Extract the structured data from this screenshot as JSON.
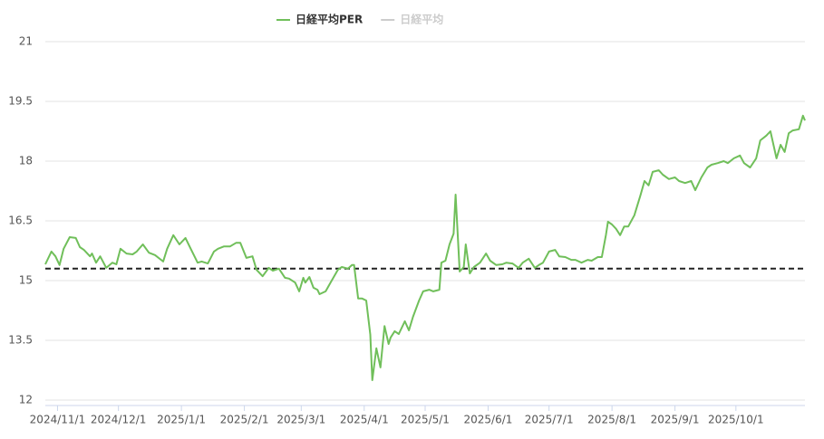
{
  "chart_data": {
    "type": "line",
    "x": [
      "2024-10-26",
      "2024-10-29",
      "2024-10-31",
      "2024-11-02",
      "2024-11-04",
      "2024-11-07",
      "2024-11-10",
      "2024-11-12",
      "2024-11-14",
      "2024-11-17",
      "2024-11-18",
      "2024-11-20",
      "2024-11-22",
      "2024-11-25",
      "2024-11-28",
      "2024-11-30",
      "2024-12-02",
      "2024-12-05",
      "2024-12-08",
      "2024-12-10",
      "2024-12-13",
      "2024-12-16",
      "2024-12-19",
      "2024-12-23",
      "2024-12-25",
      "2024-12-28",
      "2024-12-31",
      "2025-01-03",
      "2025-01-05",
      "2025-01-09",
      "2025-01-11",
      "2025-01-14",
      "2025-01-17",
      "2025-01-19",
      "2025-01-22",
      "2025-01-25",
      "2025-01-28",
      "2025-01-30",
      "2025-02-02",
      "2025-02-05",
      "2025-02-07",
      "2025-02-10",
      "2025-02-13",
      "2025-02-15",
      "2025-02-18",
      "2025-02-21",
      "2025-02-23",
      "2025-02-26",
      "2025-02-28",
      "2025-03-02",
      "2025-03-03",
      "2025-03-05",
      "2025-03-07",
      "2025-03-09",
      "2025-03-10",
      "2025-03-13",
      "2025-03-16",
      "2025-03-19",
      "2025-03-21",
      "2025-03-24",
      "2025-03-26",
      "2025-03-27",
      "2025-03-29",
      "2025-03-31",
      "2025-04-02",
      "2025-04-04",
      "2025-04-05",
      "2025-04-07",
      "2025-04-09",
      "2025-04-11",
      "2025-04-13",
      "2025-04-14",
      "2025-04-16",
      "2025-04-18",
      "2025-04-21",
      "2025-04-23",
      "2025-04-25",
      "2025-04-28",
      "2025-04-30",
      "2025-05-03",
      "2025-05-05",
      "2025-05-08",
      "2025-05-09",
      "2025-05-11",
      "2025-05-13",
      "2025-05-15",
      "2025-05-16",
      "2025-05-18",
      "2025-05-20",
      "2025-05-21",
      "2025-05-23",
      "2025-05-25",
      "2025-05-28",
      "2025-05-31",
      "2025-06-02",
      "2025-06-05",
      "2025-06-08",
      "2025-06-10",
      "2025-06-13",
      "2025-06-16",
      "2025-06-18",
      "2025-06-21",
      "2025-06-24",
      "2025-06-26",
      "2025-06-28",
      "2025-07-01",
      "2025-07-04",
      "2025-07-06",
      "2025-07-09",
      "2025-07-12",
      "2025-07-14",
      "2025-07-17",
      "2025-07-20",
      "2025-07-22",
      "2025-07-25",
      "2025-07-27",
      "2025-07-29",
      "2025-07-30",
      "2025-08-01",
      "2025-08-03",
      "2025-08-05",
      "2025-08-07",
      "2025-08-09",
      "2025-08-12",
      "2025-08-15",
      "2025-08-17",
      "2025-08-19",
      "2025-08-21",
      "2025-08-24",
      "2025-08-26",
      "2025-08-29",
      "2025-09-01",
      "2025-09-03",
      "2025-09-06",
      "2025-09-09",
      "2025-09-11",
      "2025-09-14",
      "2025-09-17",
      "2025-09-19",
      "2025-09-22",
      "2025-09-25",
      "2025-09-27",
      "2025-09-30",
      "2025-10-03",
      "2025-10-05",
      "2025-10-08",
      "2025-10-11",
      "2025-10-13",
      "2025-10-16",
      "2025-10-18",
      "2025-10-21",
      "2025-10-23",
      "2025-10-25",
      "2025-10-27",
      "2025-10-29",
      "2025-11-01",
      "2025-11-03",
      "2025-11-04"
    ],
    "series": [
      {
        "name": "日経平均PER",
        "color": "#70bf5a",
        "values": [
          15.41,
          15.73,
          15.61,
          15.39,
          15.8,
          16.09,
          16.07,
          15.84,
          15.77,
          15.61,
          15.68,
          15.45,
          15.61,
          15.32,
          15.45,
          15.41,
          15.8,
          15.68,
          15.66,
          15.73,
          15.91,
          15.7,
          15.64,
          15.48,
          15.8,
          16.14,
          15.91,
          16.07,
          15.86,
          15.45,
          15.48,
          15.43,
          15.73,
          15.8,
          15.86,
          15.86,
          15.95,
          15.95,
          15.57,
          15.61,
          15.27,
          15.11,
          15.32,
          15.25,
          15.3,
          15.07,
          15.05,
          14.95,
          14.73,
          15.07,
          14.95,
          15.09,
          14.82,
          14.77,
          14.66,
          14.73,
          15.0,
          15.27,
          15.34,
          15.3,
          15.39,
          15.39,
          14.55,
          14.55,
          14.5,
          13.64,
          12.5,
          13.3,
          12.82,
          13.86,
          13.41,
          13.57,
          13.73,
          13.66,
          13.98,
          13.75,
          14.09,
          14.5,
          14.73,
          14.77,
          14.73,
          14.77,
          15.45,
          15.5,
          15.91,
          16.18,
          17.16,
          15.23,
          15.34,
          15.91,
          15.18,
          15.34,
          15.45,
          15.68,
          15.5,
          15.39,
          15.41,
          15.45,
          15.43,
          15.32,
          15.45,
          15.55,
          15.32,
          15.39,
          15.45,
          15.73,
          15.77,
          15.61,
          15.59,
          15.52,
          15.52,
          15.45,
          15.52,
          15.5,
          15.59,
          15.59,
          16.14,
          16.48,
          16.41,
          16.3,
          16.14,
          16.36,
          16.36,
          16.64,
          17.14,
          17.5,
          17.39,
          17.73,
          17.77,
          17.66,
          17.55,
          17.59,
          17.5,
          17.45,
          17.5,
          17.27,
          17.59,
          17.84,
          17.91,
          17.95,
          18.0,
          17.95,
          18.07,
          18.14,
          17.95,
          17.84,
          18.07,
          18.52,
          18.64,
          18.75,
          18.07,
          18.41,
          18.23,
          18.7,
          18.77,
          18.8,
          19.14,
          19.02
        ]
      },
      {
        "name": "日経平均",
        "color": "#cccccc",
        "visible": false
      }
    ],
    "reference_line": {
      "value": 15.3,
      "color": "#222222",
      "dashed": true
    },
    "xlim": [
      "2024-10-26",
      "2025-11-04"
    ],
    "xticks": [
      {
        "value": "2024-11-01",
        "label": "2024/11/1"
      },
      {
        "value": "2024-12-01",
        "label": "2024/12/1"
      },
      {
        "value": "2025-01-01",
        "label": "2025/1/1"
      },
      {
        "value": "2025-02-01",
        "label": "2025/2/1"
      },
      {
        "value": "2025-03-01",
        "label": "2025/3/1"
      },
      {
        "value": "2025-04-01",
        "label": "2025/4/1"
      },
      {
        "value": "2025-05-01",
        "label": "2025/5/1"
      },
      {
        "value": "2025-06-01",
        "label": "2025/6/1"
      },
      {
        "value": "2025-07-01",
        "label": "2025/7/1"
      },
      {
        "value": "2025-08-01",
        "label": "2025/8/1"
      },
      {
        "value": "2025-09-01",
        "label": "2025/9/1"
      },
      {
        "value": "2025-10-01",
        "label": "2025/10/1"
      }
    ],
    "ylim": [
      12,
      21
    ],
    "yticks": [
      12,
      13.5,
      15,
      16.5,
      18,
      19.5,
      21
    ],
    "grid": true
  }
}
